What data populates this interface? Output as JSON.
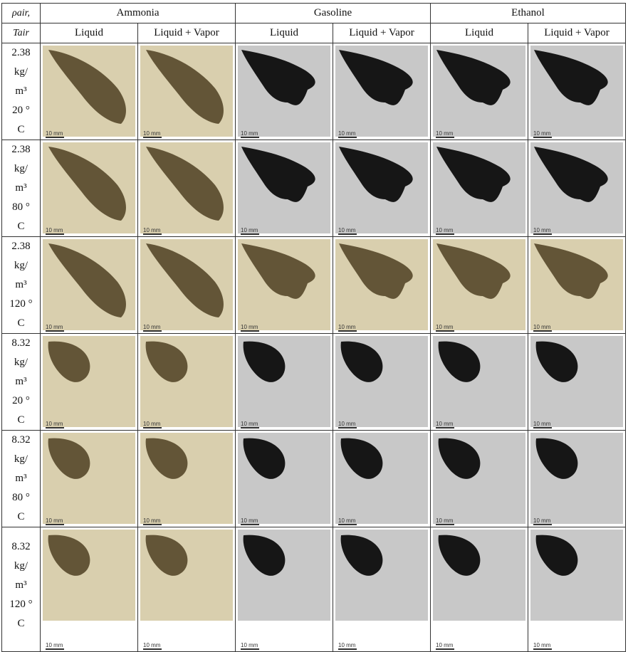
{
  "header": {
    "corner_line1": "ρair,",
    "corner_line2": "Tair",
    "groups": [
      "Ammonia",
      "Gasoline",
      "Ethanol"
    ],
    "sub": [
      "Liquid",
      "Liquid + Vapor"
    ]
  },
  "rows": [
    {
      "c1": "2.38",
      "c2": "kg/",
      "c3": "m³",
      "c4": "20 °",
      "c5": "C"
    },
    {
      "c1": "2.38",
      "c2": "kg/",
      "c3": "m³",
      "c4": "80 °",
      "c5": "C"
    },
    {
      "c1": "2.38",
      "c2": "kg/",
      "c3": "m³",
      "c4": "120 °",
      "c5": "C"
    },
    {
      "c1": "8.32",
      "c2": "kg/",
      "c3": "m³",
      "c4": "20 °",
      "c5": "C"
    },
    {
      "c1": "8.32",
      "c2": "kg/",
      "c3": "m³",
      "c4": "80 °",
      "c5": "C"
    },
    {
      "c1": "8.32",
      "c2": "kg/",
      "c3": "m³",
      "c4": "120 °",
      "c5": "C"
    }
  ],
  "scale_label": "10 mm",
  "colors": {
    "ammonia_bg": "#d9cfae",
    "ammonia_plume": "#4d3f22",
    "gray_bg": "#c8c8c8",
    "gray_plume": "#0d0d0d"
  }
}
